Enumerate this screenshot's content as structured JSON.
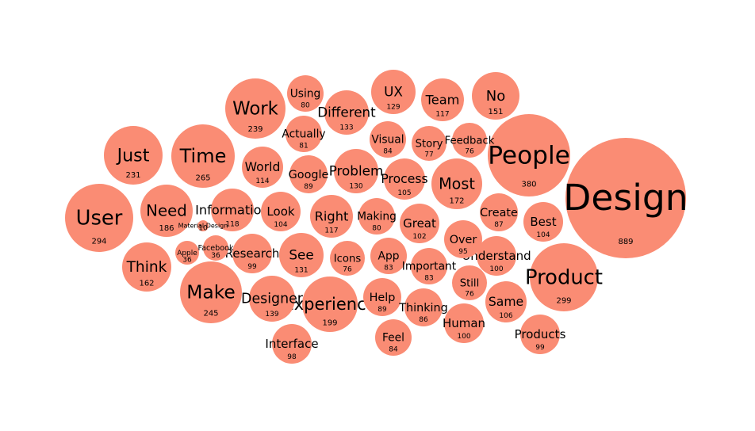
{
  "colors": {
    "bubble_fill": "#fa8c74",
    "word_text": "#000000",
    "count_text": "#000000",
    "background": "#ffffff"
  },
  "chart_data": {
    "type": "bubble",
    "title": "",
    "items": [
      {
        "word": "Design",
        "count": 889
      },
      {
        "word": "People",
        "count": 380
      },
      {
        "word": "Product",
        "count": 299
      },
      {
        "word": "User",
        "count": 294
      },
      {
        "word": "Time",
        "count": 265
      },
      {
        "word": "Make",
        "count": 245
      },
      {
        "word": "Work",
        "count": 239
      },
      {
        "word": "Just",
        "count": 231
      },
      {
        "word": "Experience",
        "count": 199
      },
      {
        "word": "Need",
        "count": 186
      },
      {
        "word": "Most",
        "count": 172
      },
      {
        "word": "Think",
        "count": 162
      },
      {
        "word": "No",
        "count": 151
      },
      {
        "word": "Designer",
        "count": 139
      },
      {
        "word": "Different",
        "count": 133
      },
      {
        "word": "See",
        "count": 131
      },
      {
        "word": "Problem",
        "count": 130
      },
      {
        "word": "UX",
        "count": 129
      },
      {
        "word": "Information",
        "count": 118
      },
      {
        "word": "Team",
        "count": 117
      },
      {
        "word": "Right",
        "count": 117
      },
      {
        "word": "World",
        "count": 114
      },
      {
        "word": "Same",
        "count": 106
      },
      {
        "word": "Process",
        "count": 105
      },
      {
        "word": "Look",
        "count": 104
      },
      {
        "word": "Best",
        "count": 104
      },
      {
        "word": "Great",
        "count": 102
      },
      {
        "word": "Understand",
        "count": 100
      },
      {
        "word": "Human",
        "count": 100
      },
      {
        "word": "Research",
        "count": 99
      },
      {
        "word": "Products",
        "count": 99
      },
      {
        "word": "Interface",
        "count": 98
      },
      {
        "word": "Over",
        "count": 95
      },
      {
        "word": "Google",
        "count": 89
      },
      {
        "word": "Help",
        "count": 89
      },
      {
        "word": "Create",
        "count": 87
      },
      {
        "word": "Thinking",
        "count": 86
      },
      {
        "word": "Visual",
        "count": 84
      },
      {
        "word": "Feel",
        "count": 84
      },
      {
        "word": "App",
        "count": 83
      },
      {
        "word": "Important",
        "count": 83
      },
      {
        "word": "Actually",
        "count": 81
      },
      {
        "word": "Using",
        "count": 80
      },
      {
        "word": "Making",
        "count": 80
      },
      {
        "word": "Story",
        "count": 77
      },
      {
        "word": "Feedback",
        "count": 76
      },
      {
        "word": "Icons",
        "count": 76
      },
      {
        "word": "Still",
        "count": 76
      },
      {
        "word": "Facebook",
        "count": 36
      },
      {
        "word": "Apple",
        "count": 36
      },
      {
        "word": "Material Design",
        "count": 10
      }
    ]
  }
}
